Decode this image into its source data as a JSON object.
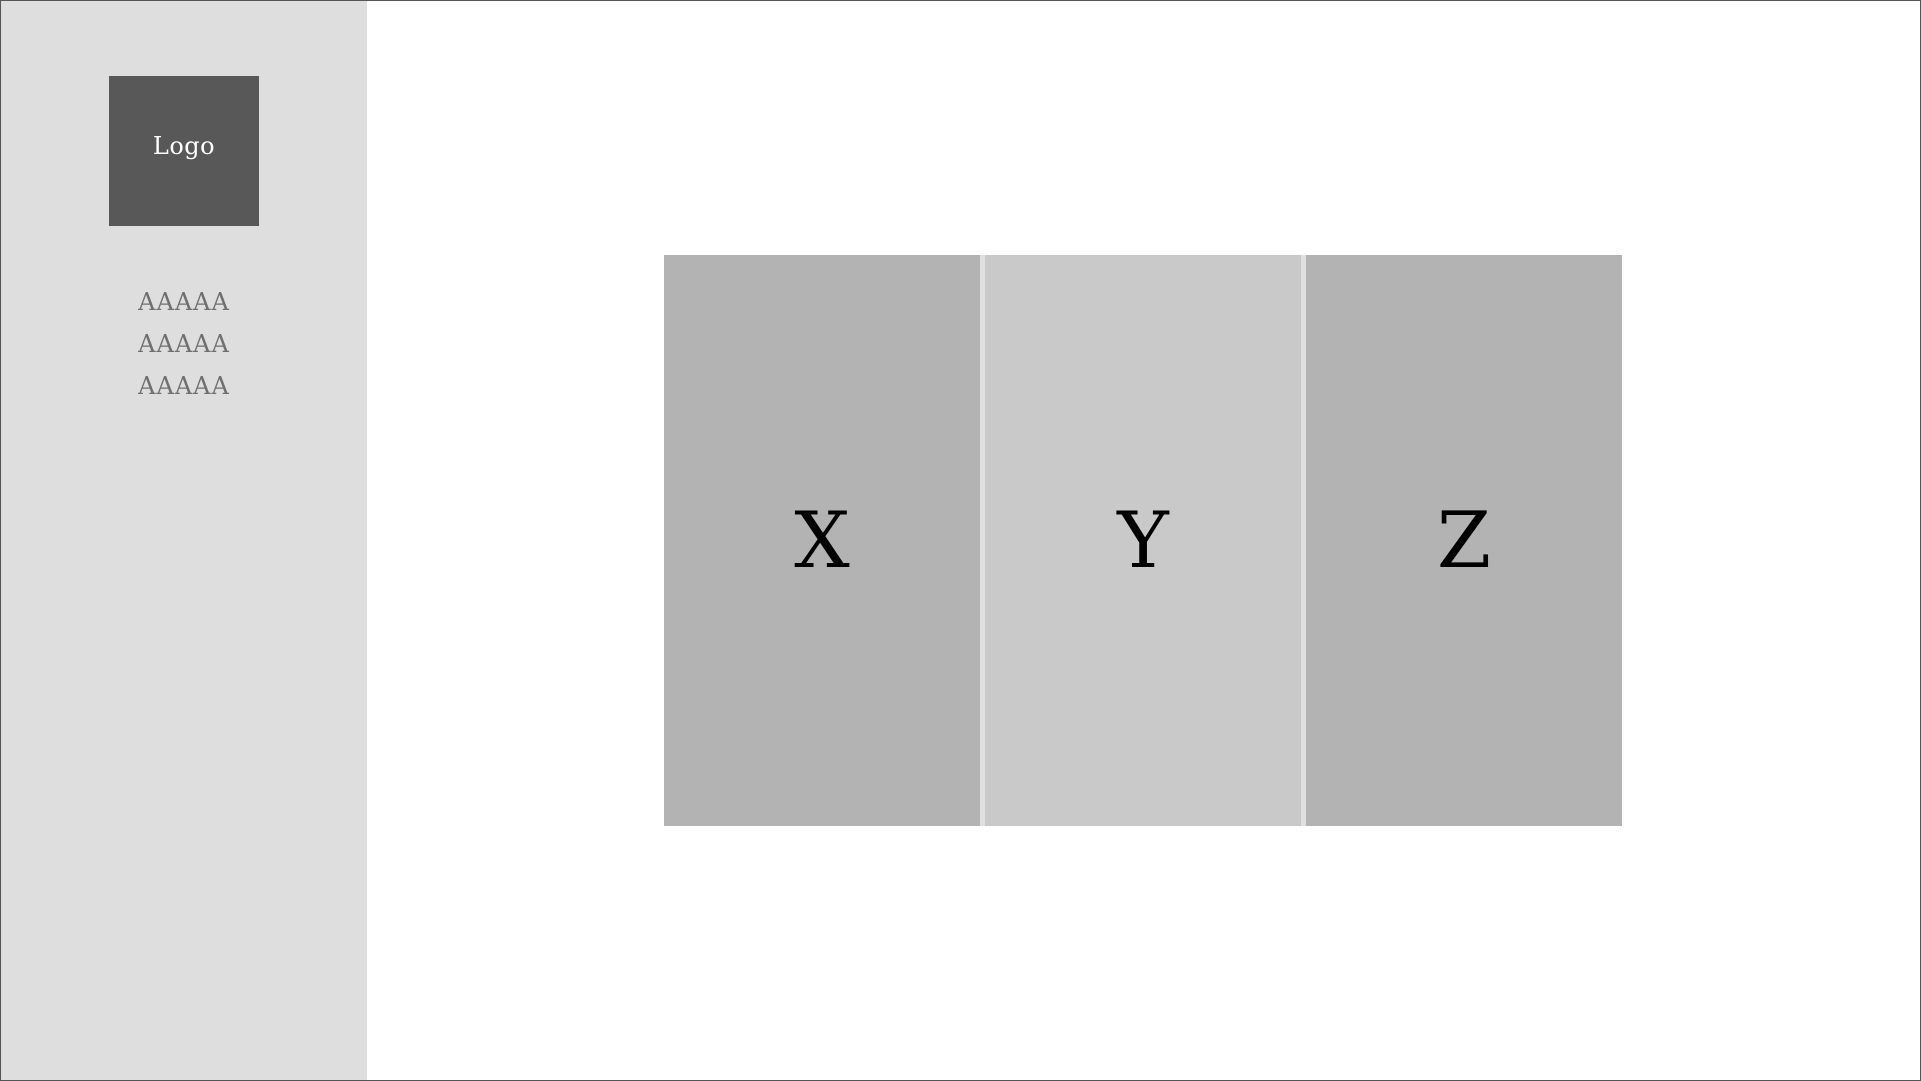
{
  "colors": {
    "sidebar_bg": "#dedede",
    "logo_bg": "#595858",
    "panel_dark": "#b3b3b4",
    "panel_light": "#c9c9c9"
  },
  "sidebar": {
    "logo_text": "Logo",
    "items": [
      {
        "label": "AAAAA"
      },
      {
        "label": "AAAAA"
      },
      {
        "label": "AAAAA"
      }
    ]
  },
  "main": {
    "panels": [
      {
        "label": "X"
      },
      {
        "label": "Y"
      },
      {
        "label": "Z"
      }
    ]
  }
}
